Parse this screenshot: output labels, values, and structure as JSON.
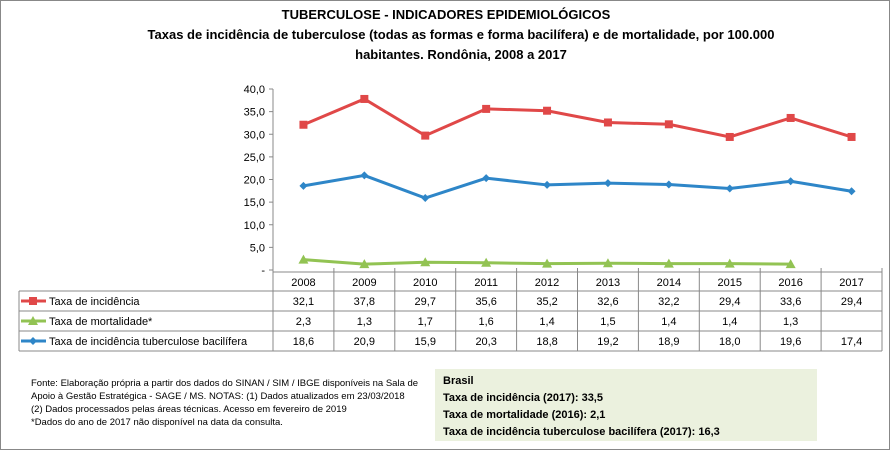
{
  "title": "TUBERCULOSE - INDICADORES EPIDEMIOLÓGICOS",
  "subtitle": "Taxas de incidência de tuberculose (todas as formas e forma bacilífera) e de mortalidade,  por 100.000 habitantes. Rondônia, 2008 a 2017",
  "chart_data": {
    "type": "line",
    "categories": [
      "2008",
      "2009",
      "2010",
      "2011",
      "2012",
      "2013",
      "2014",
      "2015",
      "2016",
      "2017"
    ],
    "ylim": [
      0,
      40
    ],
    "yticks": [
      "-",
      "5,0",
      "10,0",
      "15,0",
      "20,0",
      "25,0",
      "30,0",
      "35,0",
      "40,0"
    ],
    "grid": false,
    "legend": "data-table",
    "series": [
      {
        "name": "Taxa de incidência",
        "color": "#e04848",
        "marker": "square",
        "values": [
          32.1,
          37.8,
          29.7,
          35.6,
          35.2,
          32.6,
          32.2,
          29.4,
          33.6,
          29.4
        ],
        "labels": [
          "32,1",
          "37,8",
          "29,7",
          "35,6",
          "35,2",
          "32,6",
          "32,2",
          "29,4",
          "33,6",
          "29,4"
        ]
      },
      {
        "name": "Taxa de mortalidade*",
        "color": "#92c353",
        "marker": "triangle",
        "values": [
          2.3,
          1.3,
          1.7,
          1.6,
          1.4,
          1.5,
          1.4,
          1.4,
          1.3,
          null
        ],
        "labels": [
          "2,3",
          "1,3",
          "1,7",
          "1,6",
          "1,4",
          "1,5",
          "1,4",
          "1,4",
          "1,3",
          ""
        ]
      },
      {
        "name": "Taxa de incidência tuberculose bacilífera",
        "color": "#2e86c8",
        "marker": "diamond",
        "values": [
          18.6,
          20.9,
          15.9,
          20.3,
          18.8,
          19.2,
          18.9,
          18.0,
          19.6,
          17.4
        ],
        "labels": [
          "18,6",
          "20,9",
          "15,9",
          "20,3",
          "18,8",
          "19,2",
          "18,9",
          "18,0",
          "19,6",
          "17,4"
        ]
      }
    ]
  },
  "notes": [
    "Fonte: Elaboração própria a partir dos dados do SINAN / SIM / IBGE disponíveis na Sala de Apoio à Gestão Estratégica - SAGE / MS. NOTAS: (1) Dados atualizados em 23/03/2018",
    "(2) Dados processados pelas áreas técnicas. Acesso em fevereiro de 2019",
    "*Dados do ano de 2017 não disponível na data da consulta."
  ],
  "brasil": {
    "heading": "Brasil",
    "lines": [
      "Taxa de incidência (2017): 33,5",
      "Taxa de mortalidade (2016): 2,1",
      "Taxa de incidência  tuberculose bacilífera  (2017): 16,3"
    ]
  }
}
